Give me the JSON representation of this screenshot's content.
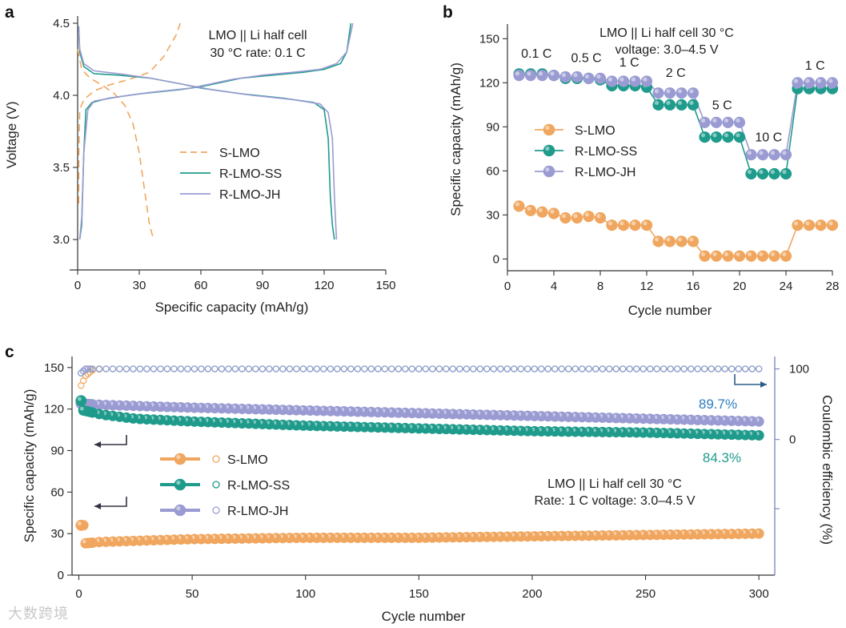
{
  "colors": {
    "s_lmo": "#f0a65e",
    "r_lmo_ss": "#1f9b8c",
    "r_lmo_jh": "#9a9bd2",
    "efficiency_axis": "#7b7fbf",
    "retention_jh": "#2f7dbf",
    "retention_ss": "#1f9b8c"
  },
  "watermark": "大数跨境",
  "chart_data": [
    {
      "panel": "a",
      "type": "line",
      "annotation": [
        "LMO || Li half cell",
        "30 °C rate: 0.1 C"
      ],
      "xlabel": "Specific capacity (mAh/g)",
      "ylabel": "Voltage (V)",
      "xlim": [
        0,
        150
      ],
      "ylim": [
        2.9,
        4.55
      ],
      "xticks": [
        0,
        30,
        60,
        90,
        120,
        150
      ],
      "yticks": [
        3.0,
        3.5,
        4.0,
        4.5
      ],
      "legend": [
        "S-LMO",
        "R-LMO-SS",
        "R-LMO-JH"
      ],
      "series": [
        {
          "name": "S-LMO",
          "style": "dashed",
          "charge": [
            [
              0.5,
              3.25
            ],
            [
              0.6,
              3.6
            ],
            [
              1,
              3.9
            ],
            [
              3,
              3.97
            ],
            [
              8,
              4.03
            ],
            [
              15,
              4.07
            ],
            [
              25,
              4.11
            ],
            [
              35,
              4.16
            ],
            [
              42,
              4.27
            ],
            [
              48,
              4.42
            ],
            [
              50,
              4.5
            ]
          ],
          "discharge": [
            [
              0,
              4.32
            ],
            [
              2,
              4.18
            ],
            [
              6,
              4.12
            ],
            [
              12,
              4.07
            ],
            [
              18,
              4.01
            ],
            [
              23,
              3.93
            ],
            [
              27,
              3.8
            ],
            [
              30,
              3.6
            ],
            [
              33,
              3.3
            ],
            [
              35,
              3.1
            ],
            [
              37,
              3.0
            ]
          ]
        },
        {
          "name": "R-LMO-SS",
          "style": "solid",
          "charge": [
            [
              1,
              3.0
            ],
            [
              2,
              3.1
            ],
            [
              3,
              3.6
            ],
            [
              4,
              3.9
            ],
            [
              7,
              3.95
            ],
            [
              15,
              3.98
            ],
            [
              30,
              4.01
            ],
            [
              50,
              4.04
            ],
            [
              60,
              4.06
            ],
            [
              70,
              4.09
            ],
            [
              80,
              4.12
            ],
            [
              95,
              4.14
            ],
            [
              110,
              4.16
            ],
            [
              120,
              4.18
            ],
            [
              128,
              4.22
            ],
            [
              131,
              4.3
            ],
            [
              133,
              4.5
            ]
          ],
          "discharge": [
            [
              0.5,
              4.48
            ],
            [
              1,
              4.3
            ],
            [
              3,
              4.2
            ],
            [
              8,
              4.15
            ],
            [
              20,
              4.14
            ],
            [
              35,
              4.12
            ],
            [
              50,
              4.08
            ],
            [
              60,
              4.05
            ],
            [
              80,
              4.01
            ],
            [
              100,
              3.98
            ],
            [
              115,
              3.95
            ],
            [
              120,
              3.9
            ],
            [
              122,
              3.7
            ],
            [
              123,
              3.3
            ],
            [
              124,
              3.1
            ],
            [
              125,
              3.0
            ]
          ]
        },
        {
          "name": "R-LMO-JH",
          "style": "solid",
          "charge": [
            [
              1,
              3.0
            ],
            [
              2,
              3.15
            ],
            [
              3,
              3.6
            ],
            [
              5,
              3.9
            ],
            [
              8,
              3.96
            ],
            [
              20,
              3.99
            ],
            [
              35,
              4.02
            ],
            [
              55,
              4.05
            ],
            [
              65,
              4.08
            ],
            [
              75,
              4.11
            ],
            [
              90,
              4.14
            ],
            [
              105,
              4.16
            ],
            [
              118,
              4.18
            ],
            [
              126,
              4.22
            ],
            [
              131,
              4.3
            ],
            [
              134,
              4.5
            ]
          ],
          "discharge": [
            [
              0.5,
              4.48
            ],
            [
              1,
              4.32
            ],
            [
              3,
              4.22
            ],
            [
              8,
              4.17
            ],
            [
              20,
              4.15
            ],
            [
              35,
              4.12
            ],
            [
              50,
              4.08
            ],
            [
              65,
              4.04
            ],
            [
              85,
              4.0
            ],
            [
              105,
              3.97
            ],
            [
              118,
              3.94
            ],
            [
              122,
              3.88
            ],
            [
              124,
              3.7
            ],
            [
              125,
              3.3
            ],
            [
              126,
              3.0
            ]
          ]
        }
      ]
    },
    {
      "panel": "b",
      "type": "scatter",
      "annotation": [
        "LMO || Li half cell 30 °C",
        "voltage: 3.0–4.5 V"
      ],
      "xlabel": "Cycle number",
      "ylabel": "Specific capacity (mAh/g)",
      "xlim": [
        0,
        28
      ],
      "ylim": [
        -8,
        160
      ],
      "xticks": [
        0,
        4,
        8,
        12,
        16,
        20,
        24,
        28
      ],
      "yticks": [
        0,
        30,
        60,
        90,
        120,
        150
      ],
      "rate_labels": [
        {
          "label": "0.1 C",
          "x": 2.5,
          "y": 137
        },
        {
          "label": "0.5 C",
          "x": 6.8,
          "y": 134
        },
        {
          "label": "1 C",
          "x": 10.5,
          "y": 131
        },
        {
          "label": "2 C",
          "x": 14.5,
          "y": 124
        },
        {
          "label": "5 C",
          "x": 18.5,
          "y": 102
        },
        {
          "label": "10 C",
          "x": 22.5,
          "y": 80
        },
        {
          "label": "1 C",
          "x": 26.5,
          "y": 129
        }
      ],
      "legend": [
        "S-LMO",
        "R-LMO-SS",
        "R-LMO-JH"
      ],
      "x": [
        1,
        2,
        3,
        4,
        5,
        6,
        7,
        8,
        9,
        10,
        11,
        12,
        13,
        14,
        15,
        16,
        17,
        18,
        19,
        20,
        21,
        22,
        23,
        24,
        25,
        26,
        27,
        28
      ],
      "series": [
        {
          "name": "S-LMO",
          "values": [
            36,
            33,
            32,
            31,
            28,
            28,
            29,
            28,
            23,
            23,
            23,
            23,
            12,
            12,
            12,
            12,
            2,
            2,
            2,
            2,
            2,
            2,
            2,
            2,
            23,
            23,
            23,
            23
          ]
        },
        {
          "name": "R-LMO-SS",
          "values": [
            126,
            126,
            126,
            125,
            123,
            123,
            123,
            122,
            118,
            118,
            118,
            117,
            105,
            105,
            105,
            105,
            83,
            83,
            83,
            83,
            58,
            58,
            58,
            58,
            116,
            116,
            116,
            116
          ]
        },
        {
          "name": "R-LMO-JH",
          "values": [
            125,
            125,
            125,
            125,
            124,
            124,
            123,
            123,
            121,
            121,
            121,
            121,
            113,
            113,
            113,
            113,
            93,
            93,
            93,
            93,
            71,
            71,
            71,
            71,
            120,
            120,
            120,
            120
          ]
        }
      ]
    },
    {
      "panel": "c",
      "type": "scatter",
      "annotation": [
        "LMO || Li half cell 30 °C",
        "Rate: 1 C voltage: 3.0–4.5 V"
      ],
      "xlabel": "Cycle number",
      "ylabel": "Specific capacity (mAh/g)",
      "y2label": "Coulombic efficiency (%)",
      "xlim": [
        -3,
        307
      ],
      "ylim": [
        0,
        158
      ],
      "xticks": [
        0,
        50,
        100,
        150,
        200,
        250,
        300
      ],
      "yticks": [
        0,
        30,
        60,
        90,
        120,
        150
      ],
      "y2ticks": [
        0,
        100
      ],
      "retention": [
        {
          "label": "89.7%",
          "series": "R-LMO-JH"
        },
        {
          "label": "84.3%",
          "series": "R-LMO-SS"
        }
      ],
      "legend": [
        "S-LMO",
        "R-LMO-SS",
        "R-LMO-JH"
      ],
      "series": [
        {
          "name": "S-LMO",
          "capacity": [
            [
              1,
              36
            ],
            [
              2,
              36
            ],
            [
              3,
              23
            ],
            [
              10,
              24
            ],
            [
              50,
              26
            ],
            [
              100,
              27
            ],
            [
              150,
              27
            ],
            [
              200,
              28
            ],
            [
              250,
              29
            ],
            [
              300,
              30
            ]
          ],
          "efficiency": [
            [
              1,
              137
            ],
            [
              3,
              144
            ],
            [
              6,
              148
            ],
            [
              10,
              149
            ]
          ]
        },
        {
          "name": "R-LMO-SS",
          "capacity": [
            [
              1,
              126
            ],
            [
              2,
              119
            ],
            [
              10,
              116
            ],
            [
              25,
              113
            ],
            [
              50,
              111
            ],
            [
              100,
              108
            ],
            [
              150,
              106
            ],
            [
              200,
              104
            ],
            [
              250,
              103
            ],
            [
              300,
              101
            ]
          ],
          "efficiency": [
            [
              1,
              146
            ],
            [
              3,
              149
            ],
            [
              300,
              149
            ]
          ]
        },
        {
          "name": "R-LMO-JH",
          "capacity": [
            [
              1,
              124
            ],
            [
              10,
              123
            ],
            [
              50,
              121
            ],
            [
              100,
              119
            ],
            [
              150,
              117
            ],
            [
              200,
              115
            ],
            [
              250,
              113
            ],
            [
              300,
              111
            ]
          ],
          "efficiency": [
            [
              1,
              146
            ],
            [
              3,
              149
            ],
            [
              300,
              149
            ]
          ]
        }
      ]
    }
  ]
}
